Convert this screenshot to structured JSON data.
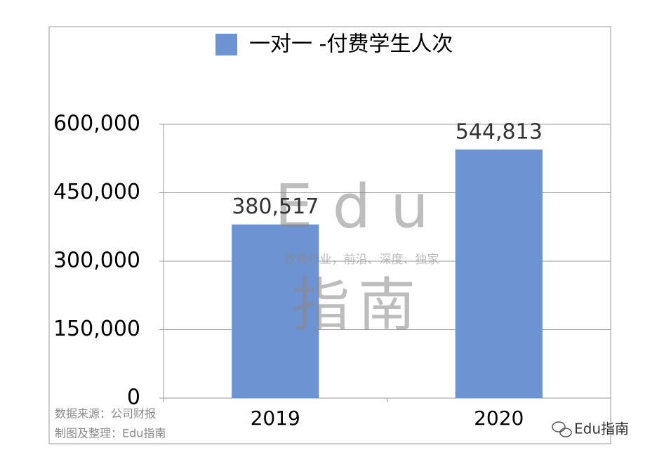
{
  "chart_data": {
    "type": "bar",
    "categories": [
      "2019",
      "2020"
    ],
    "series": [
      {
        "name": "一对一 -付费学生人次",
        "color": "#6e93d2",
        "values": [
          380517,
          544813
        ],
        "value_labels": [
          "380,517",
          "544,813"
        ]
      }
    ],
    "ylim": [
      0,
      600000
    ],
    "yticks": [
      0,
      {
        "value": 150000,
        "label": "150,000"
      },
      {
        "value": 300000,
        "label": "300,000"
      },
      {
        "value": 450000,
        "label": "450,000"
      },
      {
        "value": 600000,
        "label": "600,000"
      }
    ],
    "grid": true,
    "legend": "top",
    "watermark": {
      "brand": "Edu",
      "slogan": "教育行业，前沿、深度、独家",
      "name": "指南"
    },
    "source_notes": [
      "数据来源：公司财报",
      "制图及整理：Edu指南"
    ],
    "footer_brand": "Edu指南"
  }
}
